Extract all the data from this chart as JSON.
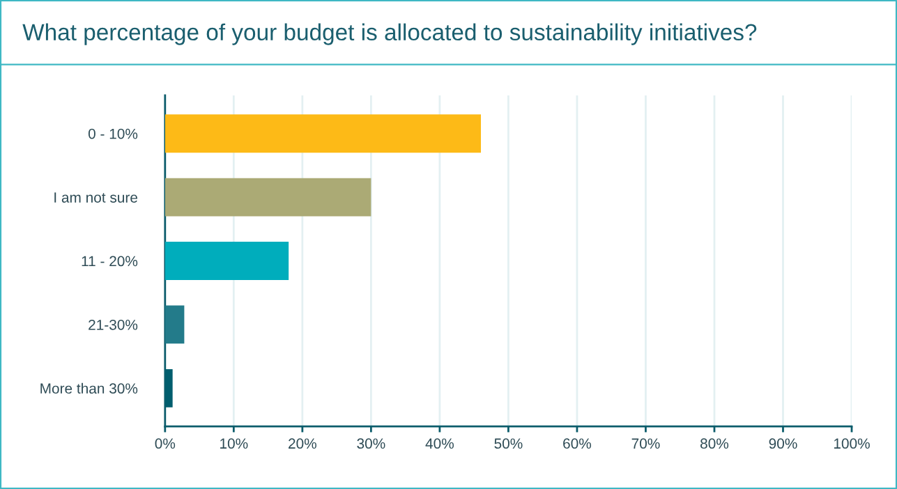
{
  "chart_data": {
    "type": "bar",
    "orientation": "horizontal",
    "title": "What percentage of your budget is allocated to sustainability initiatives?",
    "categories": [
      "0 - 10%",
      "I am not sure",
      "11 - 20%",
      "21-30%",
      "More than 30%"
    ],
    "values": [
      46,
      30,
      18,
      2.8,
      1.1
    ],
    "colors": [
      "#fdba17",
      "#abaa75",
      "#00adbc",
      "#237b8a",
      "#005e6e"
    ],
    "xlim": [
      0,
      100
    ],
    "xticks": [
      {
        "value": 0,
        "label": "0%"
      },
      {
        "value": 10,
        "label": "10%"
      },
      {
        "value": 20,
        "label": "20%"
      },
      {
        "value": 30,
        "label": "30%"
      },
      {
        "value": 40,
        "label": "40%"
      },
      {
        "value": 50,
        "label": "50%"
      },
      {
        "value": 60,
        "label": "60%"
      },
      {
        "value": 70,
        "label": "70%"
      },
      {
        "value": 80,
        "label": "80%"
      },
      {
        "value": 90,
        "label": "90%"
      },
      {
        "value": 100,
        "label": "100%"
      }
    ],
    "grid": "x",
    "legend": false
  }
}
